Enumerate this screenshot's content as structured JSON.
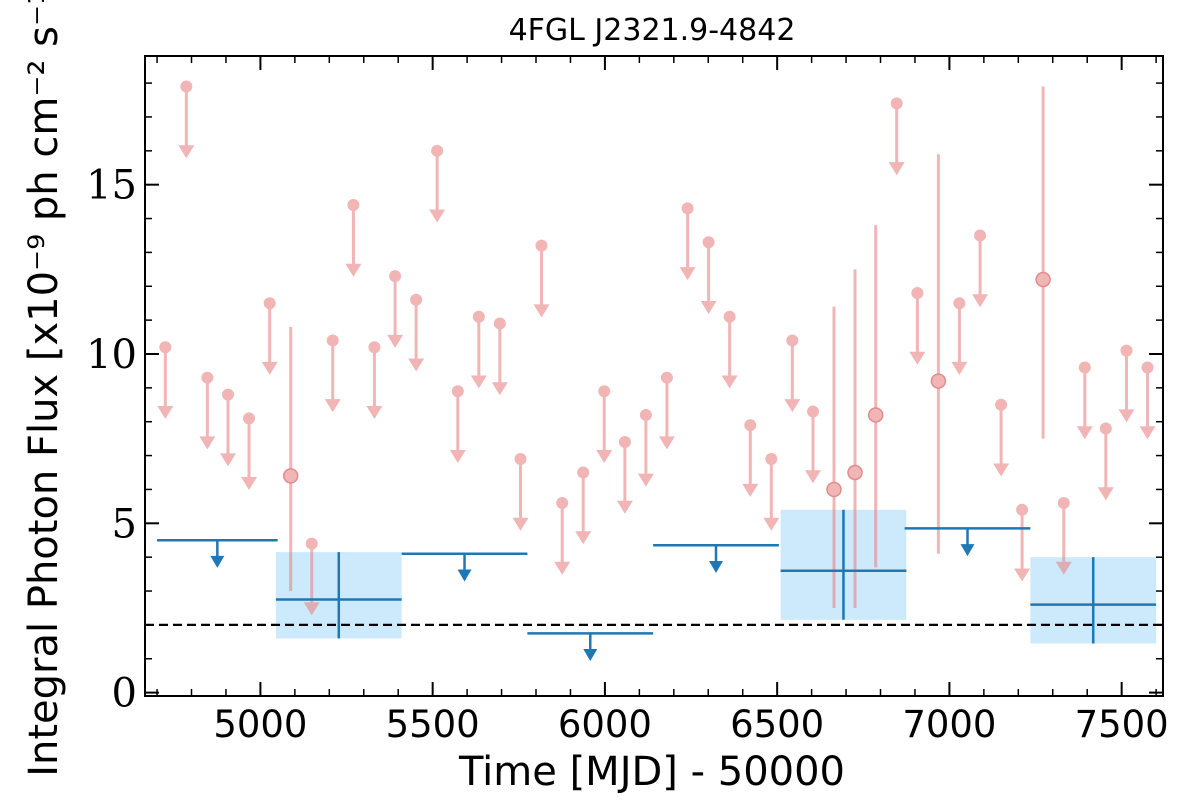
{
  "chart_data": {
    "type": "scatter",
    "title": "4FGL J2321.9-4842",
    "xlabel": "Time [MJD] - 50000",
    "ylabel": "Integral Photon Flux [x10⁻⁹ ph cm⁻² s⁻¹]",
    "xlim": [
      4665,
      7620
    ],
    "ylim": [
      -0.1,
      18.8
    ],
    "xticks": [
      5000,
      5500,
      6000,
      6500,
      7000,
      7500
    ],
    "xtick_labels": [
      "5000",
      "5500",
      "6000",
      "6500",
      "7000",
      "7500"
    ],
    "yticks": [
      0,
      5,
      10,
      15
    ],
    "ytick_labels": [
      "0",
      "5",
      "10",
      "15"
    ],
    "grid": false,
    "reference_line": {
      "y": 2.0,
      "style": "dashed",
      "color": "#000000"
    },
    "colors": {
      "fine_bins": "#e88585",
      "coarse_bins": "#1f77b4",
      "coarse_band": "#cdeafc"
    },
    "fine_upper_limits": [
      {
        "x": 4724,
        "y": 10.2
      },
      {
        "x": 4785,
        "y": 17.9
      },
      {
        "x": 4846,
        "y": 9.3
      },
      {
        "x": 4906,
        "y": 8.8
      },
      {
        "x": 4967,
        "y": 8.1
      },
      {
        "x": 5027,
        "y": 11.5
      },
      {
        "x": 5149,
        "y": 4.4
      },
      {
        "x": 5210,
        "y": 10.4
      },
      {
        "x": 5270,
        "y": 14.4
      },
      {
        "x": 5331,
        "y": 10.2
      },
      {
        "x": 5391,
        "y": 12.3
      },
      {
        "x": 5452,
        "y": 11.6
      },
      {
        "x": 5513,
        "y": 16.0
      },
      {
        "x": 5573,
        "y": 8.9
      },
      {
        "x": 5634,
        "y": 11.1
      },
      {
        "x": 5695,
        "y": 10.9
      },
      {
        "x": 5755,
        "y": 6.9
      },
      {
        "x": 5816,
        "y": 13.2
      },
      {
        "x": 5876,
        "y": 5.6
      },
      {
        "x": 5937,
        "y": 6.5
      },
      {
        "x": 5998,
        "y": 8.9
      },
      {
        "x": 6058,
        "y": 7.4
      },
      {
        "x": 6119,
        "y": 8.2
      },
      {
        "x": 6180,
        "y": 9.3
      },
      {
        "x": 6240,
        "y": 14.3
      },
      {
        "x": 6301,
        "y": 13.3
      },
      {
        "x": 6362,
        "y": 11.1
      },
      {
        "x": 6422,
        "y": 7.9
      },
      {
        "x": 6483,
        "y": 6.9
      },
      {
        "x": 6544,
        "y": 10.4
      },
      {
        "x": 6604,
        "y": 8.3
      },
      {
        "x": 6847,
        "y": 17.4
      },
      {
        "x": 6907,
        "y": 11.8
      },
      {
        "x": 7029,
        "y": 11.5
      },
      {
        "x": 7089,
        "y": 13.5
      },
      {
        "x": 7150,
        "y": 8.5
      },
      {
        "x": 7211,
        "y": 5.4
      },
      {
        "x": 7332,
        "y": 5.6
      },
      {
        "x": 7393,
        "y": 9.6
      },
      {
        "x": 7454,
        "y": 7.8
      },
      {
        "x": 7514,
        "y": 10.1
      },
      {
        "x": 7575,
        "y": 9.6
      }
    ],
    "fine_detections": [
      {
        "x": 5088,
        "y": 6.4,
        "ylo": 3.0,
        "yhi": 10.8
      },
      {
        "x": 6665,
        "y": 6.0,
        "ylo": 2.5,
        "yhi": 11.4
      },
      {
        "x": 6726,
        "y": 6.5,
        "ylo": 2.5,
        "yhi": 12.5
      },
      {
        "x": 6786,
        "y": 8.2,
        "ylo": 3.7,
        "yhi": 13.8
      },
      {
        "x": 6968,
        "y": 9.2,
        "ylo": 4.1,
        "yhi": 15.9
      },
      {
        "x": 7272,
        "y": 12.2,
        "ylo": 7.5,
        "yhi": 17.9
      }
    ],
    "coarse_upper_limits": [
      {
        "x0": 4700,
        "x1": 5050,
        "y": 4.5
      },
      {
        "x0": 5410,
        "x1": 5775,
        "y": 4.1
      },
      {
        "x0": 5775,
        "x1": 6140,
        "y": 1.75
      },
      {
        "x0": 6140,
        "x1": 6505,
        "y": 4.35
      },
      {
        "x0": 6870,
        "x1": 7235,
        "y": 4.85
      }
    ],
    "coarse_detections": [
      {
        "x0": 5045,
        "x1": 5410,
        "y": 2.75,
        "ylo": 1.6,
        "yhi": 4.15
      },
      {
        "x0": 6510,
        "x1": 6875,
        "y": 3.6,
        "ylo": 2.15,
        "yhi": 5.4
      },
      {
        "x0": 7235,
        "x1": 7600,
        "y": 2.6,
        "ylo": 1.45,
        "yhi": 4.0
      }
    ]
  }
}
